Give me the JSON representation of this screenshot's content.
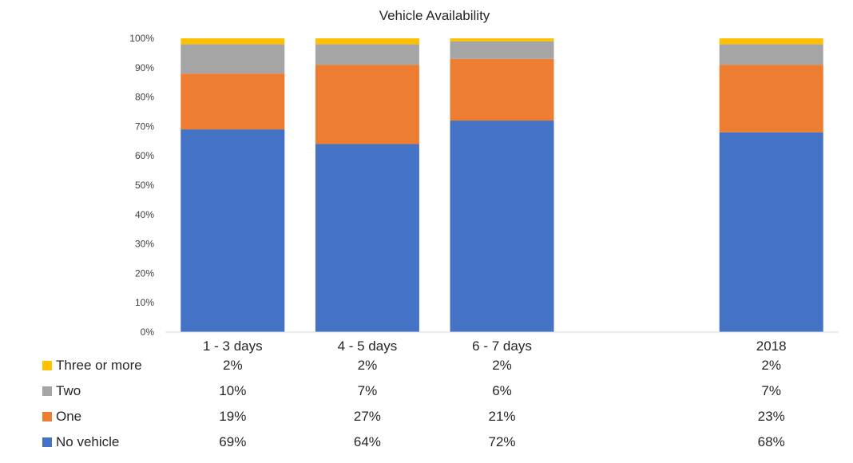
{
  "chart_data": {
    "type": "bar",
    "stacked": true,
    "normalized": true,
    "title": "Vehicle Availability",
    "xlabel": "",
    "ylabel": "",
    "ylim": [
      0,
      100
    ],
    "yticks": [
      "0%",
      "10%",
      "20%",
      "30%",
      "40%",
      "50%",
      "60%",
      "70%",
      "80%",
      "90%",
      "100%"
    ],
    "categories": [
      "1 - 3 days",
      "4 - 5 days",
      "6 - 7 days",
      "",
      "2018"
    ],
    "series": [
      {
        "name": "No vehicle",
        "color": "#4472C4",
        "values": [
          69,
          64,
          72,
          null,
          68
        ],
        "labels": [
          "69%",
          "64%",
          "72%",
          "",
          "68%"
        ]
      },
      {
        "name": "One",
        "color": "#ED7D31",
        "values": [
          19,
          27,
          21,
          null,
          23
        ],
        "labels": [
          "19%",
          "27%",
          "21%",
          "",
          "23%"
        ]
      },
      {
        "name": "Two",
        "color": "#A5A5A5",
        "values": [
          10,
          7,
          6,
          null,
          7
        ],
        "labels": [
          "10%",
          "7%",
          "6%",
          "",
          "7%"
        ]
      },
      {
        "name": "Three or more",
        "color": "#FFC000",
        "values": [
          2,
          2,
          2,
          null,
          2
        ],
        "labels": [
          "2%",
          "2%",
          "2%",
          "",
          "2%"
        ]
      }
    ],
    "legend": "data-table-left",
    "grid": false
  }
}
